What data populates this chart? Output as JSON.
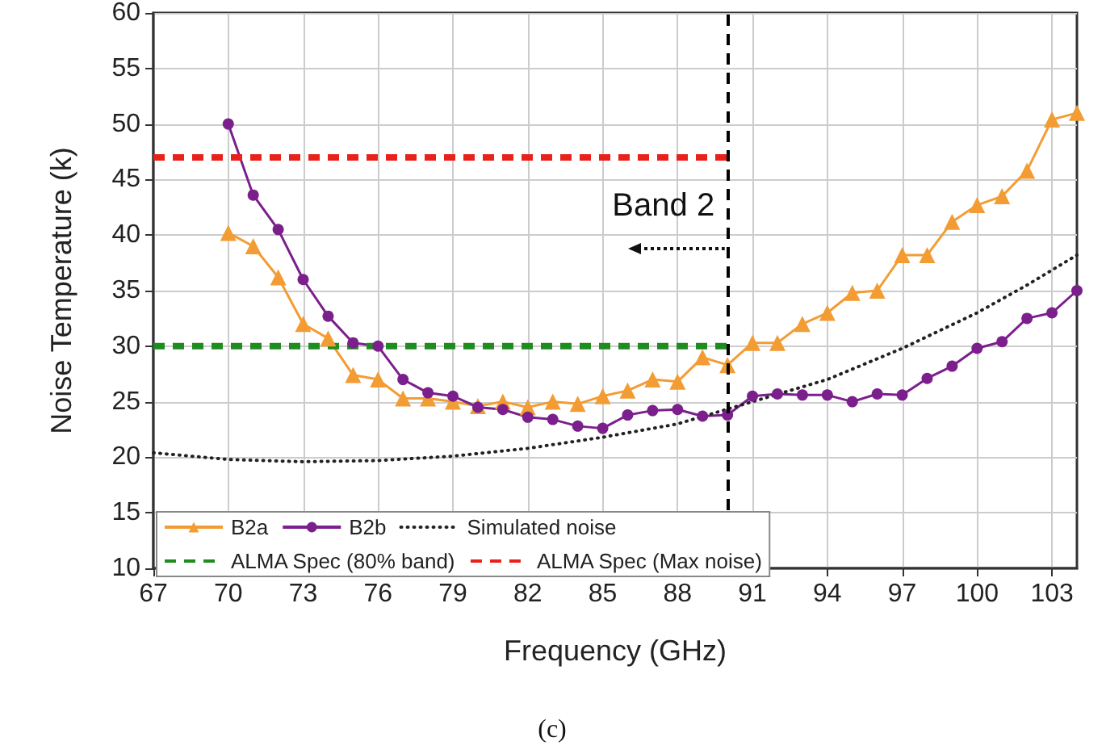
{
  "chart_data": {
    "type": "line",
    "xlabel": "Frequency (GHz)",
    "ylabel": "Noise Temperature (k)",
    "annotations": [
      "Band 2",
      "(c)"
    ],
    "xlim": [
      67,
      104
    ],
    "xticks": [
      67,
      70,
      73,
      76,
      79,
      82,
      85,
      88,
      91,
      94,
      97,
      100,
      103
    ],
    "ylim": [
      10,
      60
    ],
    "yticks": [
      10,
      15,
      20,
      25,
      30,
      35,
      40,
      45,
      50,
      55,
      60
    ],
    "grid": true,
    "legend": "bottom",
    "ref_lines": [
      {
        "axis": "x",
        "value": 90,
        "color": "#000000",
        "line_style": "dashed"
      }
    ],
    "series": [
      {
        "name": "B2a",
        "color": "#f39c33",
        "marker": "triangle",
        "line_style": "solid",
        "x": [
          70,
          71,
          72,
          73,
          74,
          75,
          76,
          77,
          78,
          79,
          80,
          81,
          82,
          83,
          84,
          85,
          86,
          87,
          88,
          89,
          90,
          91,
          92,
          93,
          94,
          95,
          96,
          97,
          98,
          99,
          100,
          101,
          102,
          103,
          104
        ],
        "values": [
          40.2,
          39,
          36.2,
          32,
          30.7,
          27.4,
          27,
          25.3,
          25.3,
          25,
          24.6,
          25,
          24.5,
          25,
          24.8,
          25.5,
          26,
          27,
          26.8,
          29,
          28.3,
          30.3,
          30.3,
          32,
          33,
          34.8,
          35,
          38.2,
          38.2,
          41.2,
          42.7,
          43.5,
          45.8,
          50.4,
          51
        ]
      },
      {
        "name": "B2b",
        "color": "#7b1f8c",
        "marker": "circle",
        "line_style": "solid",
        "x": [
          70,
          71,
          72,
          73,
          74,
          75,
          76,
          77,
          78,
          79,
          80,
          81,
          82,
          83,
          84,
          85,
          86,
          87,
          88,
          89,
          90,
          91,
          92,
          93,
          94,
          95,
          96,
          97,
          98,
          99,
          100,
          101,
          102,
          103,
          104
        ],
        "values": [
          50,
          43.6,
          40.5,
          36,
          32.7,
          30.3,
          30,
          27,
          25.8,
          25.5,
          24.5,
          24.3,
          23.6,
          23.4,
          22.8,
          22.6,
          23.8,
          24.2,
          24.3,
          23.7,
          23.8,
          25.5,
          25.7,
          25.6,
          25.6,
          25,
          25.7,
          25.6,
          27.1,
          28.2,
          29.8,
          30.4,
          32.5,
          33,
          35
        ]
      },
      {
        "name": "Simulated noise",
        "color": "#222222",
        "marker": "none",
        "line_style": "dotted",
        "x": [
          67,
          70,
          73,
          76,
          79,
          82,
          85,
          88,
          91,
          94,
          97,
          100,
          102,
          104
        ],
        "values": [
          20.4,
          19.8,
          19.6,
          19.7,
          20.1,
          20.8,
          21.8,
          23,
          25,
          27,
          29.8,
          33,
          35.5,
          38.2
        ]
      },
      {
        "name": "ALMA Spec (80% band)",
        "color": "#1e8c1e",
        "marker": "none",
        "line_style": "dashed",
        "x": [
          67,
          90
        ],
        "values": [
          30,
          30
        ]
      },
      {
        "name": "ALMA Spec (Max noise)",
        "color": "#e8221b",
        "marker": "none",
        "line_style": "dashed",
        "x": [
          67,
          90
        ],
        "values": [
          47,
          47
        ]
      }
    ]
  }
}
